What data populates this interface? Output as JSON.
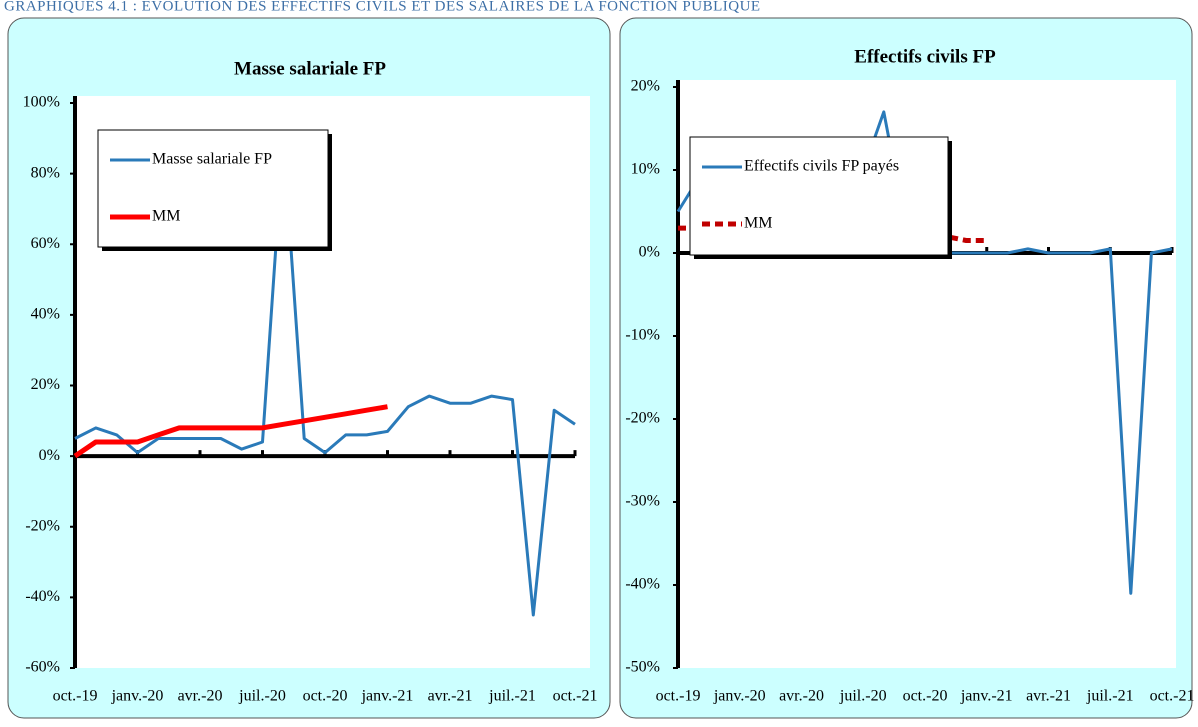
{
  "header": {
    "title": "GRAPHIQUES 4.1 : ÉVOLUTION DES EFFECTIFS CIVILS ET DES SALAIRES DE LA FONCTION PUBLIQUE"
  },
  "chart_data": [
    {
      "type": "line",
      "title": "Masse salariale FP",
      "categories": [
        "oct.-19",
        null,
        null,
        "janv.-20",
        null,
        null,
        "avr.-20",
        null,
        null,
        "juil.-20",
        null,
        null,
        "oct.-20",
        null,
        null,
        "janv.-21",
        null,
        null,
        "avr.-21",
        null,
        null,
        "juil.-21",
        null,
        null,
        "oct.-21"
      ],
      "series": [
        {
          "name": "Masse salariale FP",
          "color": "#2a7ab9",
          "values": [
            5,
            8,
            6,
            1,
            5,
            5,
            5,
            5,
            2,
            4,
            90,
            5,
            1,
            6,
            6,
            7,
            14,
            17,
            15,
            15,
            17,
            16,
            -45,
            13,
            9
          ]
        },
        {
          "name": "MM",
          "color": "#ff0000",
          "values": [
            0,
            4,
            4,
            4,
            6,
            8,
            8,
            8,
            8,
            8,
            9,
            10,
            11,
            12,
            13,
            14,
            null,
            null,
            null,
            null,
            null,
            null,
            null,
            null,
            null
          ]
        }
      ],
      "ylim": [
        -60,
        100
      ],
      "yticks": [
        {
          "value": -60,
          "label": "-60%"
        },
        {
          "value": -40,
          "label": "-40%"
        },
        {
          "value": -20,
          "label": "-20%"
        },
        {
          "value": 0,
          "label": "0%"
        },
        {
          "value": 20,
          "label": "20%"
        },
        {
          "value": 40,
          "label": "40%"
        },
        {
          "value": 60,
          "label": "60%"
        },
        {
          "value": 80,
          "label": "80%"
        },
        {
          "value": 100,
          "label": "100%"
        }
      ],
      "legend": "upper left"
    },
    {
      "type": "line",
      "title": "Effectifs civils FP",
      "categories": [
        "oct.-19",
        null,
        null,
        "janv.-20",
        null,
        null,
        "avr.-20",
        null,
        null,
        "juil.-20",
        null,
        null,
        "oct.-20",
        null,
        null,
        "janv.-21",
        null,
        null,
        "avr.-21",
        null,
        null,
        "juil.-21",
        null,
        null,
        "oct.-21"
      ],
      "series": [
        {
          "name": "Effectifs civils FP payés",
          "color": "#2a7ab9",
          "values": [
            5,
            9,
            11,
            5,
            3,
            2,
            3,
            4,
            3,
            10,
            17,
            4,
            1,
            0,
            0,
            0,
            0,
            0.5,
            0,
            0,
            0,
            0.5,
            -41,
            0,
            0.5
          ]
        },
        {
          "name": "MM",
          "color": "#c00000",
          "dashed": true,
          "values": [
            3,
            3,
            3,
            3,
            3,
            3,
            2.5,
            2.5,
            2.5,
            2.5,
            2.5,
            2,
            2,
            2,
            1.5,
            1.5,
            null,
            null,
            null,
            null,
            null,
            null,
            null,
            null,
            null
          ]
        }
      ],
      "ylim": [
        -50,
        20
      ],
      "yticks": [
        {
          "value": -50,
          "label": "-50%"
        },
        {
          "value": -40,
          "label": "-40%"
        },
        {
          "value": -30,
          "label": "-30%"
        },
        {
          "value": -20,
          "label": "-20%"
        },
        {
          "value": -10,
          "label": "-10%"
        },
        {
          "value": 0,
          "label": "0%"
        },
        {
          "value": 10,
          "label": "10%"
        },
        {
          "value": 20,
          "label": "20%"
        }
      ],
      "legend": "upper left"
    }
  ]
}
